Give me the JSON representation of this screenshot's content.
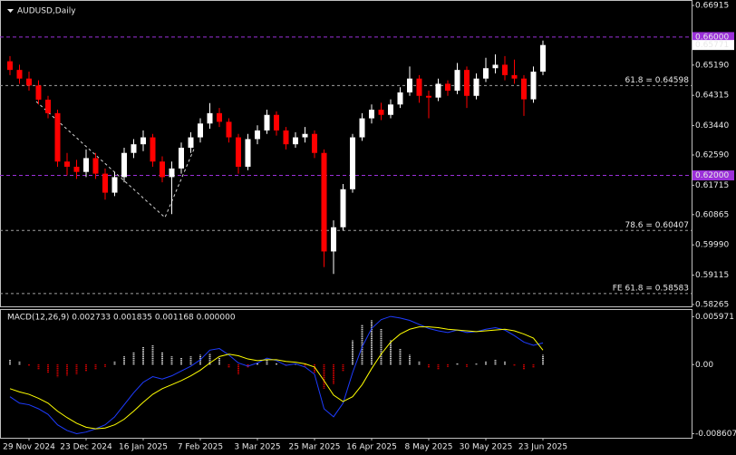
{
  "chart_data": [
    {
      "type": "candlestick",
      "title": "AUDUSD,Daily",
      "categories": [
        null,
        null,
        "29 Nov 2024",
        null,
        null,
        null,
        null,
        null,
        "23 Dec 2024",
        null,
        null,
        null,
        null,
        null,
        "16 Jan 2025",
        null,
        null,
        null,
        null,
        null,
        "7 Feb 2025",
        null,
        null,
        null,
        null,
        null,
        "3 Mar 2025",
        null,
        null,
        null,
        null,
        null,
        "25 Mar 2025",
        null,
        null,
        null,
        null,
        null,
        "16 Apr 2025",
        null,
        null,
        null,
        null,
        null,
        "8 May 2025",
        null,
        null,
        null,
        null,
        null,
        "30 May 2025",
        null,
        null,
        null,
        null,
        null,
        "23 Jun 2025"
      ],
      "open": [
        0.653,
        0.6505,
        0.648,
        0.646,
        0.6419,
        0.638,
        0.624,
        0.6225,
        0.621,
        0.625,
        0.6205,
        0.615,
        0.6195,
        0.6265,
        0.629,
        0.631,
        0.624,
        0.6195,
        0.622,
        0.628,
        0.631,
        0.635,
        0.638,
        0.6355,
        0.631,
        0.6225,
        0.6305,
        0.633,
        0.6375,
        0.633,
        0.629,
        0.631,
        0.632,
        0.6265,
        0.598,
        0.605,
        0.616,
        0.631,
        0.6365,
        0.639,
        0.6375,
        0.6405,
        0.644,
        0.648,
        0.643,
        0.6425,
        0.6465,
        0.6445,
        0.6505,
        0.643,
        0.648,
        0.651,
        0.652,
        0.649,
        0.648,
        0.642,
        0.65
      ],
      "high": [
        0.6545,
        0.652,
        0.65,
        0.6475,
        0.643,
        0.639,
        0.6265,
        0.6245,
        0.6275,
        0.6265,
        0.622,
        0.621,
        0.628,
        0.6305,
        0.633,
        0.632,
        0.6255,
        0.624,
        0.6295,
        0.6325,
        0.6365,
        0.6409,
        0.6395,
        0.6365,
        0.632,
        0.632,
        0.6345,
        0.639,
        0.6385,
        0.634,
        0.6325,
        0.634,
        0.633,
        0.6275,
        0.607,
        0.6175,
        0.632,
        0.638,
        0.6405,
        0.641,
        0.642,
        0.6455,
        0.6515,
        0.649,
        0.6445,
        0.648,
        0.6475,
        0.6525,
        0.6515,
        0.6495,
        0.654,
        0.655,
        0.6545,
        0.6535,
        0.649,
        0.6515,
        0.659
      ],
      "low": [
        0.649,
        0.6465,
        0.6445,
        0.6405,
        0.6365,
        0.6225,
        0.62,
        0.619,
        0.6195,
        0.619,
        0.613,
        0.614,
        0.618,
        0.625,
        0.627,
        0.6225,
        0.618,
        0.6088,
        0.6205,
        0.6265,
        0.6295,
        0.6335,
        0.634,
        0.6295,
        0.6205,
        0.6215,
        0.629,
        0.632,
        0.6315,
        0.6275,
        0.628,
        0.6295,
        0.625,
        0.5935,
        0.5915,
        0.604,
        0.615,
        0.63,
        0.635,
        0.636,
        0.6365,
        0.6395,
        0.643,
        0.641,
        0.6365,
        0.6415,
        0.643,
        0.6435,
        0.6395,
        0.642,
        0.647,
        0.6495,
        0.6475,
        0.6465,
        0.6372,
        0.641,
        0.649
      ],
      "close": [
        0.6505,
        0.648,
        0.646,
        0.6419,
        0.638,
        0.624,
        0.6225,
        0.621,
        0.625,
        0.6205,
        0.615,
        0.6195,
        0.6265,
        0.629,
        0.631,
        0.624,
        0.6195,
        0.622,
        0.628,
        0.631,
        0.635,
        0.638,
        0.6355,
        0.631,
        0.6225,
        0.6305,
        0.633,
        0.6375,
        0.633,
        0.629,
        0.631,
        0.632,
        0.6265,
        0.598,
        0.605,
        0.616,
        0.631,
        0.6365,
        0.639,
        0.6375,
        0.6405,
        0.644,
        0.648,
        0.643,
        0.6425,
        0.6465,
        0.6445,
        0.6505,
        0.643,
        0.648,
        0.651,
        0.652,
        0.649,
        0.648,
        0.642,
        0.65,
        0.6577
      ],
      "up_color": "#ffffff",
      "down_color": "#ff0000",
      "ylim": [
        0.58265,
        0.66915
      ],
      "yticks": [
        0.66915,
        {
          "value": 0.6519,
          "label": "0.65190"
        },
        0.64315,
        {
          "value": 0.6344,
          "label": "0.63440"
        },
        {
          "value": 0.6259,
          "label": "0.62590"
        },
        0.61715,
        0.60865,
        {
          "value": 0.5999,
          "label": "0.59990"
        },
        0.59115,
        0.58265
      ],
      "last_price": 0.65771,
      "levels": [
        {
          "value": 0.66,
          "label": "0.66000",
          "color": "#9b30d9"
        },
        {
          "value": 0.62,
          "label": "0.62000",
          "color": "#9b30d9"
        }
      ],
      "annotations": [
        {
          "text": "61.8 = 0.64598",
          "value": 0.64598
        },
        {
          "text": "78.6 = 0.60407",
          "value": 0.60407
        },
        {
          "text": "FE 61.8 = 0.58583",
          "value": 0.58583
        }
      ]
    },
    {
      "type": "macd",
      "title": "MACD(12,26,9) 0.002733 0.001835 0.001168 0.000000",
      "histogram": [
        0.0006,
        0.0004,
        -0.0002,
        -0.0006,
        -0.001,
        -0.0016,
        -0.0014,
        -0.0012,
        -0.0008,
        -0.0006,
        -0.0003,
        0.0004,
        0.001,
        0.0016,
        0.0022,
        0.0024,
        0.0016,
        0.001,
        0.0008,
        0.001,
        0.0012,
        0.0014,
        0.0008,
        -0.0004,
        -0.0012,
        -0.0004,
        0.0002,
        0.0006,
        0.0002,
        -0.0002,
        0.0001,
        -0.0003,
        -0.001,
        -0.003,
        -0.0025,
        -0.0008,
        0.003,
        0.005,
        0.0055,
        0.0045,
        0.003,
        0.002,
        0.0012,
        0.0004,
        -0.0004,
        -0.0006,
        -0.0003,
        0.0002,
        -0.0003,
        0.0001,
        0.0004,
        0.0006,
        0.0004,
        -0.0002,
        -0.0006,
        -0.0004,
        0.0012
      ],
      "macd": [
        -0.004,
        -0.0048,
        -0.005,
        -0.0055,
        -0.0062,
        -0.0075,
        -0.0082,
        -0.0086,
        -0.0084,
        -0.008,
        -0.0075,
        -0.0065,
        -0.005,
        -0.0035,
        -0.0022,
        -0.0015,
        -0.0018,
        -0.0014,
        -0.0008,
        -0.0002,
        0.0006,
        0.0018,
        0.002,
        0.0012,
        0.0002,
        -0.0002,
        0.0002,
        0.0008,
        0.0005,
        -0.0001,
        0.0001,
        -0.0003,
        -0.0012,
        -0.0055,
        -0.0065,
        -0.0048,
        -0.001,
        0.0022,
        0.0045,
        0.0056,
        0.006,
        0.0058,
        0.0055,
        0.005,
        0.0045,
        0.0042,
        0.004,
        0.0043,
        0.004,
        0.0041,
        0.0044,
        0.0046,
        0.0043,
        0.0036,
        0.0028,
        0.0024,
        0.0027
      ],
      "signal": [
        -0.003,
        -0.0034,
        -0.0037,
        -0.0042,
        -0.0048,
        -0.0058,
        -0.0066,
        -0.0073,
        -0.0078,
        -0.008,
        -0.0079,
        -0.0075,
        -0.0068,
        -0.0058,
        -0.0047,
        -0.0037,
        -0.003,
        -0.0025,
        -0.002,
        -0.0014,
        -0.0007,
        0.0002,
        0.001,
        0.0013,
        0.0011,
        0.0007,
        0.0005,
        0.0006,
        0.0006,
        0.0004,
        0.0003,
        0.0001,
        -0.0003,
        -0.002,
        -0.0038,
        -0.0046,
        -0.004,
        -0.0025,
        -0.0005,
        0.0013,
        0.0028,
        0.0038,
        0.0044,
        0.0047,
        0.0047,
        0.0046,
        0.0044,
        0.0043,
        0.0042,
        0.0041,
        0.0042,
        0.0043,
        0.0044,
        0.0042,
        0.0038,
        0.0033,
        0.0018
      ],
      "histogram_up_color": "#ffffff",
      "histogram_down_color": "#ff0000",
      "macd_color": "#1e3cff",
      "signal_color": "#ffff00",
      "ylim": [
        -0.009,
        0.0068
      ],
      "yticks": [
        0.005971,
        {
          "value": 0,
          "label": "0.00"
        },
        -0.008607
      ]
    }
  ]
}
